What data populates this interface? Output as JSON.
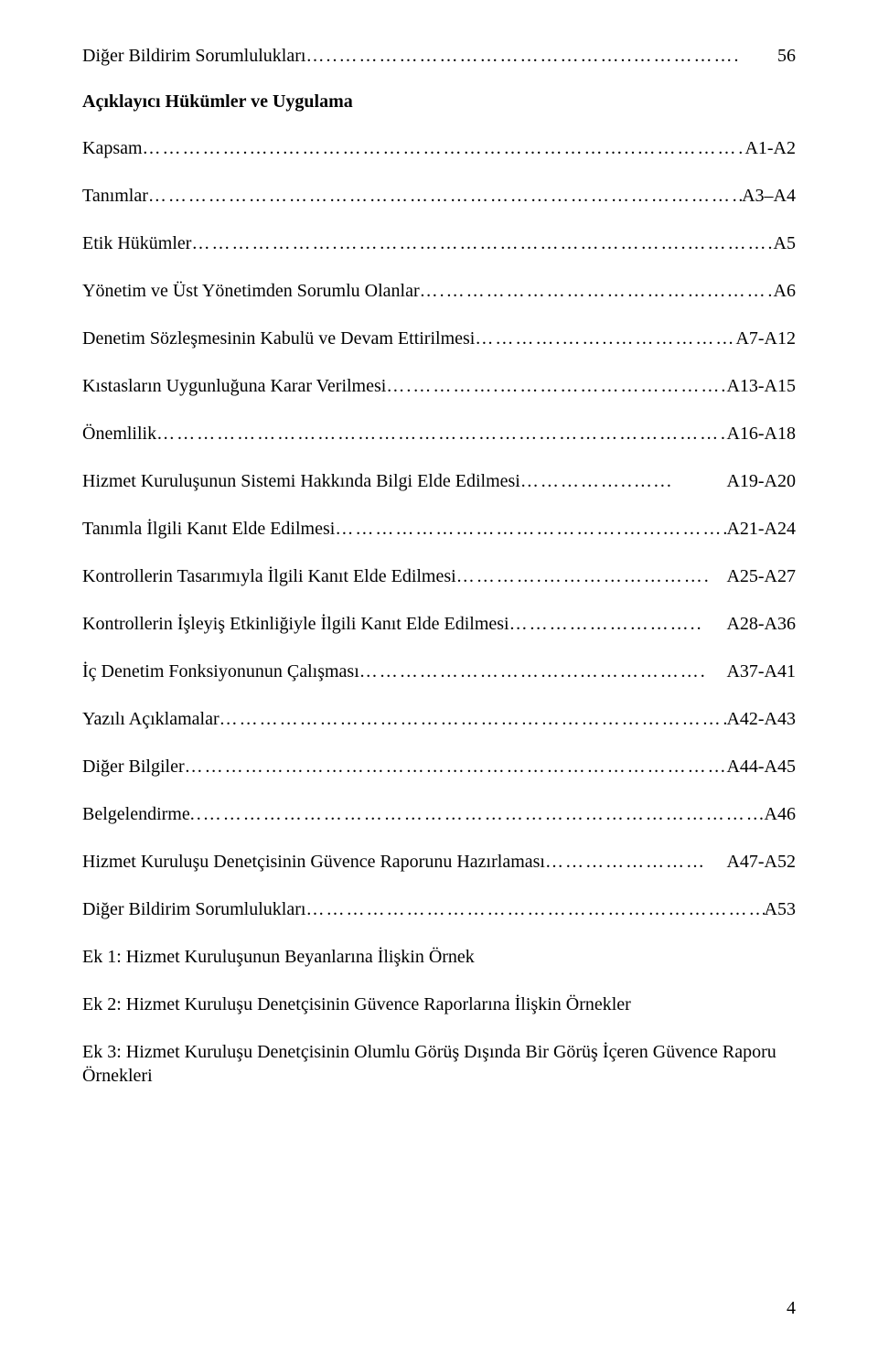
{
  "toc": {
    "lines": [
      {
        "label": "Diğer Bildirim Sorumlulukları",
        "page": "56",
        "dots": "…..……………………………………..……………."
      },
      {
        "label": "",
        "title": "Açıklayıcı Hükümler ve Uygulama",
        "page": ""
      },
      {
        "label": "Kapsam",
        "page": "A1-A2",
        "dots": "…………….…..……………………………………………..…………………………..."
      },
      {
        "label": "Tanımlar",
        "page": "A3–A4",
        "dots": "……………………………………………………………………………………..…..."
      },
      {
        "label": "Etik Hükümler",
        "page": "A5",
        "dots": "………………….…………………………………………….………….………….…..."
      },
      {
        "label": "Yönetim ve Üst Yönetimden Sorumlu Olanlar",
        "page": "A6",
        "dots": "….…………………………………...………."
      },
      {
        "label": "Denetim Sözleşmesinin Kabulü ve Devam Ettirilmesi",
        "page": "A7-A12",
        "dots": "………….……..…………………."
      },
      {
        "label": "Kıstasların Uygunluğuna Karar Verilmesi",
        "page": " A13-A15",
        "dots": "….………….…………………………….."
      },
      {
        "label": "Önemlilik",
        "page": "A16-A18",
        "dots": "……………………………………………………………………………………..."
      },
      {
        "label": "Hizmet Kuruluşunun Sistemi Hakkında Bilgi Elde Edilmesi",
        "page": "A19-A20",
        "dots": "……………..…..."
      },
      {
        "label": "Tanımla İlgili Kanıt Elde Edilmesi",
        "page": "A21-A24",
        "dots": "…………………………………….…...………."
      },
      {
        "label": "Kontrollerin Tasarımıyla İlgili Kanıt Elde Edilmesi",
        "page": "A25-A27",
        "dots": "………….……………………."
      },
      {
        "label": "Kontrollerin İşleyiş Etkinliğiyle İlgili Kanıt Elde Edilmesi",
        "page": "A28-A36",
        "dots": "……………………….."
      },
      {
        "label": "İç Denetim Fonksiyonunun Çalışması",
        "page": "A37-A41",
        "dots": "…………………………...………………."
      },
      {
        "label": "Yazılı Açıklamalar",
        "page": "A42-A43",
        "dots": "………………………………………………………………………."
      },
      {
        "label": "Diğer Bilgiler",
        "page": "A44-A45",
        "dots": "………………………………………………………………………………."
      },
      {
        "label": "Belgelendirme",
        "page": "A46",
        "dots": "..…………………………………………………………………………….…..."
      },
      {
        "label": "Hizmet Kuruluşu Denetçisinin Güvence Raporunu Hazırlaması",
        "page": " A47-A52",
        "dots": "……………………"
      },
      {
        "label": "Diğer Bildirim Sorumlulukları",
        "page": "A53",
        "dots": "……………………………………………………………..."
      }
    ],
    "appendix": [
      "Ek 1: Hizmet Kuruluşunun Beyanlarına İlişkin Örnek",
      "Ek 2: Hizmet Kuruluşu Denetçisinin Güvence Raporlarına İlişkin Örnekler",
      "Ek 3: Hizmet Kuruluşu Denetçisinin Olumlu Görüş Dışında Bir Görüş İçeren Güvence Raporu Örnekleri"
    ]
  },
  "pageNumber": "4",
  "style": {
    "fontFamily": "Times New Roman",
    "fontSizePt": 15,
    "textColor": "#000000",
    "backgroundColor": "#ffffff",
    "pageWidth": 960,
    "pageHeight": 1490
  }
}
